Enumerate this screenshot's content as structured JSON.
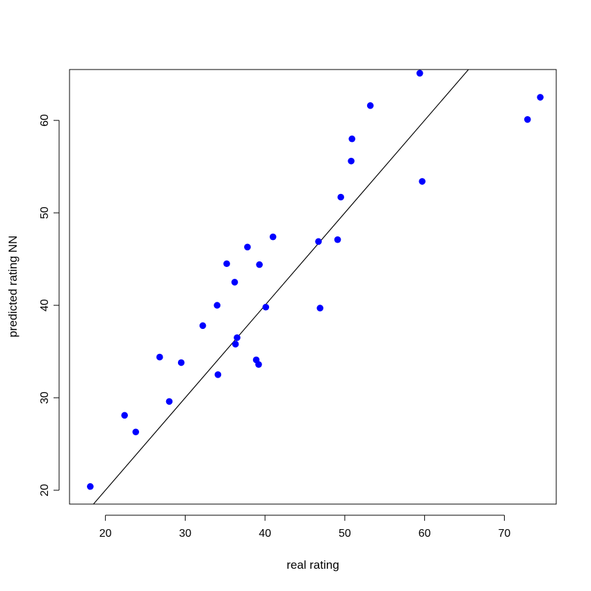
{
  "chart_data": {
    "type": "scatter",
    "title": "",
    "xlabel": "real rating",
    "ylabel": "predicted rating NN",
    "xlim": [
      15.5,
      76.5
    ],
    "ylim": [
      18.5,
      65.5
    ],
    "xticks": [
      20,
      30,
      40,
      50,
      60,
      70
    ],
    "yticks": [
      20,
      30,
      40,
      50,
      60
    ],
    "xtick_labels": [
      "20",
      "30",
      "40",
      "50",
      "60",
      "70"
    ],
    "ytick_labels": [
      "20",
      "30",
      "40",
      "50",
      "60"
    ],
    "grid": false,
    "point_color": "#0000ff",
    "line_color": "#000000",
    "reference_line": {
      "type": "identity",
      "slope": 1,
      "intercept": 0
    },
    "points": [
      {
        "x": 18.1,
        "y": 20.4
      },
      {
        "x": 22.4,
        "y": 28.1
      },
      {
        "x": 23.8,
        "y": 26.3
      },
      {
        "x": 26.8,
        "y": 34.4
      },
      {
        "x": 28.0,
        "y": 29.6
      },
      {
        "x": 29.5,
        "y": 33.8
      },
      {
        "x": 32.2,
        "y": 37.8
      },
      {
        "x": 34.0,
        "y": 40.0
      },
      {
        "x": 34.1,
        "y": 32.5
      },
      {
        "x": 35.2,
        "y": 44.5
      },
      {
        "x": 36.2,
        "y": 42.5
      },
      {
        "x": 36.3,
        "y": 35.8
      },
      {
        "x": 36.5,
        "y": 36.5
      },
      {
        "x": 37.8,
        "y": 46.3
      },
      {
        "x": 38.9,
        "y": 34.1
      },
      {
        "x": 39.2,
        "y": 33.6
      },
      {
        "x": 39.3,
        "y": 44.4
      },
      {
        "x": 40.1,
        "y": 39.8
      },
      {
        "x": 41.0,
        "y": 47.4
      },
      {
        "x": 46.7,
        "y": 46.9
      },
      {
        "x": 46.9,
        "y": 39.7
      },
      {
        "x": 49.1,
        "y": 47.1
      },
      {
        "x": 49.5,
        "y": 51.7
      },
      {
        "x": 50.8,
        "y": 55.6
      },
      {
        "x": 50.9,
        "y": 58.0
      },
      {
        "x": 53.2,
        "y": 61.6
      },
      {
        "x": 59.4,
        "y": 65.1
      },
      {
        "x": 59.7,
        "y": 53.4
      },
      {
        "x": 72.9,
        "y": 60.1
      },
      {
        "x": 74.5,
        "y": 62.5
      }
    ]
  }
}
